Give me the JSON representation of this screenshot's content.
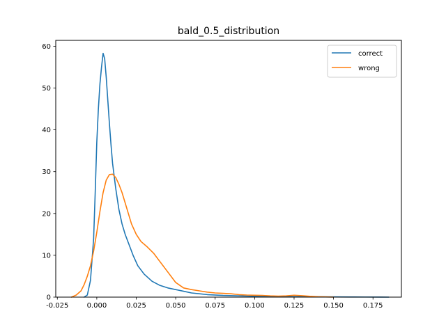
{
  "chart_data": {
    "type": "line",
    "title": "bald_0.5_distribution",
    "xlabel": "",
    "ylabel": "",
    "xlim": [
      -0.026,
      0.193
    ],
    "ylim": [
      0,
      61.4
    ],
    "x_ticks": [
      "-0.025",
      "0.000",
      "0.025",
      "0.050",
      "0.075",
      "0.100",
      "0.125",
      "0.150",
      "0.175"
    ],
    "x_tick_values": [
      -0.025,
      0.0,
      0.025,
      0.05,
      0.075,
      0.1,
      0.125,
      0.15,
      0.175
    ],
    "y_ticks": [
      "0",
      "10",
      "20",
      "30",
      "40",
      "50",
      "60"
    ],
    "y_tick_values": [
      0,
      10,
      20,
      30,
      40,
      50,
      60
    ],
    "legend_position": "top-right",
    "series": [
      {
        "name": "correct",
        "color": "#1f77b4",
        "x": [
          -0.008,
          -0.006,
          -0.004,
          -0.002,
          -0.001,
          0.0,
          0.001,
          0.002,
          0.003,
          0.004,
          0.005,
          0.006,
          0.007,
          0.008,
          0.009,
          0.01,
          0.012,
          0.014,
          0.016,
          0.018,
          0.02,
          0.023,
          0.026,
          0.03,
          0.035,
          0.04,
          0.045,
          0.05,
          0.055,
          0.06,
          0.065,
          0.07,
          0.08,
          0.09,
          0.1,
          0.11,
          0.12,
          0.13,
          0.14,
          0.15,
          0.16,
          0.17,
          0.18,
          0.185
        ],
        "y": [
          0.0,
          0.5,
          4.0,
          14.0,
          25.0,
          37.0,
          45.0,
          51.0,
          55.0,
          58.3,
          57.0,
          52.5,
          47.0,
          41.5,
          36.5,
          32.0,
          26.0,
          21.0,
          17.5,
          15.0,
          13.0,
          10.0,
          7.5,
          5.5,
          3.8,
          2.8,
          2.2,
          1.8,
          1.4,
          1.0,
          0.8,
          0.6,
          0.4,
          0.3,
          0.2,
          0.15,
          0.12,
          0.1,
          0.08,
          0.05,
          0.03,
          0.02,
          0.01,
          0.0
        ]
      },
      {
        "name": "wrong",
        "color": "#ff7f0e",
        "x": [
          -0.016,
          -0.013,
          -0.01,
          -0.008,
          -0.006,
          -0.004,
          -0.002,
          0.0,
          0.002,
          0.004,
          0.006,
          0.008,
          0.01,
          0.012,
          0.014,
          0.016,
          0.018,
          0.02,
          0.022,
          0.025,
          0.028,
          0.032,
          0.036,
          0.04,
          0.045,
          0.05,
          0.055,
          0.06,
          0.065,
          0.07,
          0.075,
          0.08,
          0.085,
          0.09,
          0.095,
          0.1,
          0.105,
          0.11,
          0.115,
          0.12,
          0.125,
          0.13,
          0.135,
          0.14,
          0.145,
          0.15
        ],
        "y": [
          0.0,
          0.5,
          1.5,
          3.0,
          5.0,
          7.5,
          11.0,
          15.5,
          20.5,
          25.0,
          28.0,
          29.3,
          29.4,
          28.6,
          27.0,
          25.0,
          22.5,
          20.0,
          17.5,
          15.0,
          13.3,
          12.0,
          10.5,
          8.5,
          6.0,
          3.5,
          2.2,
          1.8,
          1.5,
          1.2,
          1.0,
          0.9,
          0.8,
          0.6,
          0.5,
          0.45,
          0.4,
          0.3,
          0.25,
          0.3,
          0.45,
          0.35,
          0.2,
          0.1,
          0.05,
          0.0
        ]
      }
    ]
  }
}
